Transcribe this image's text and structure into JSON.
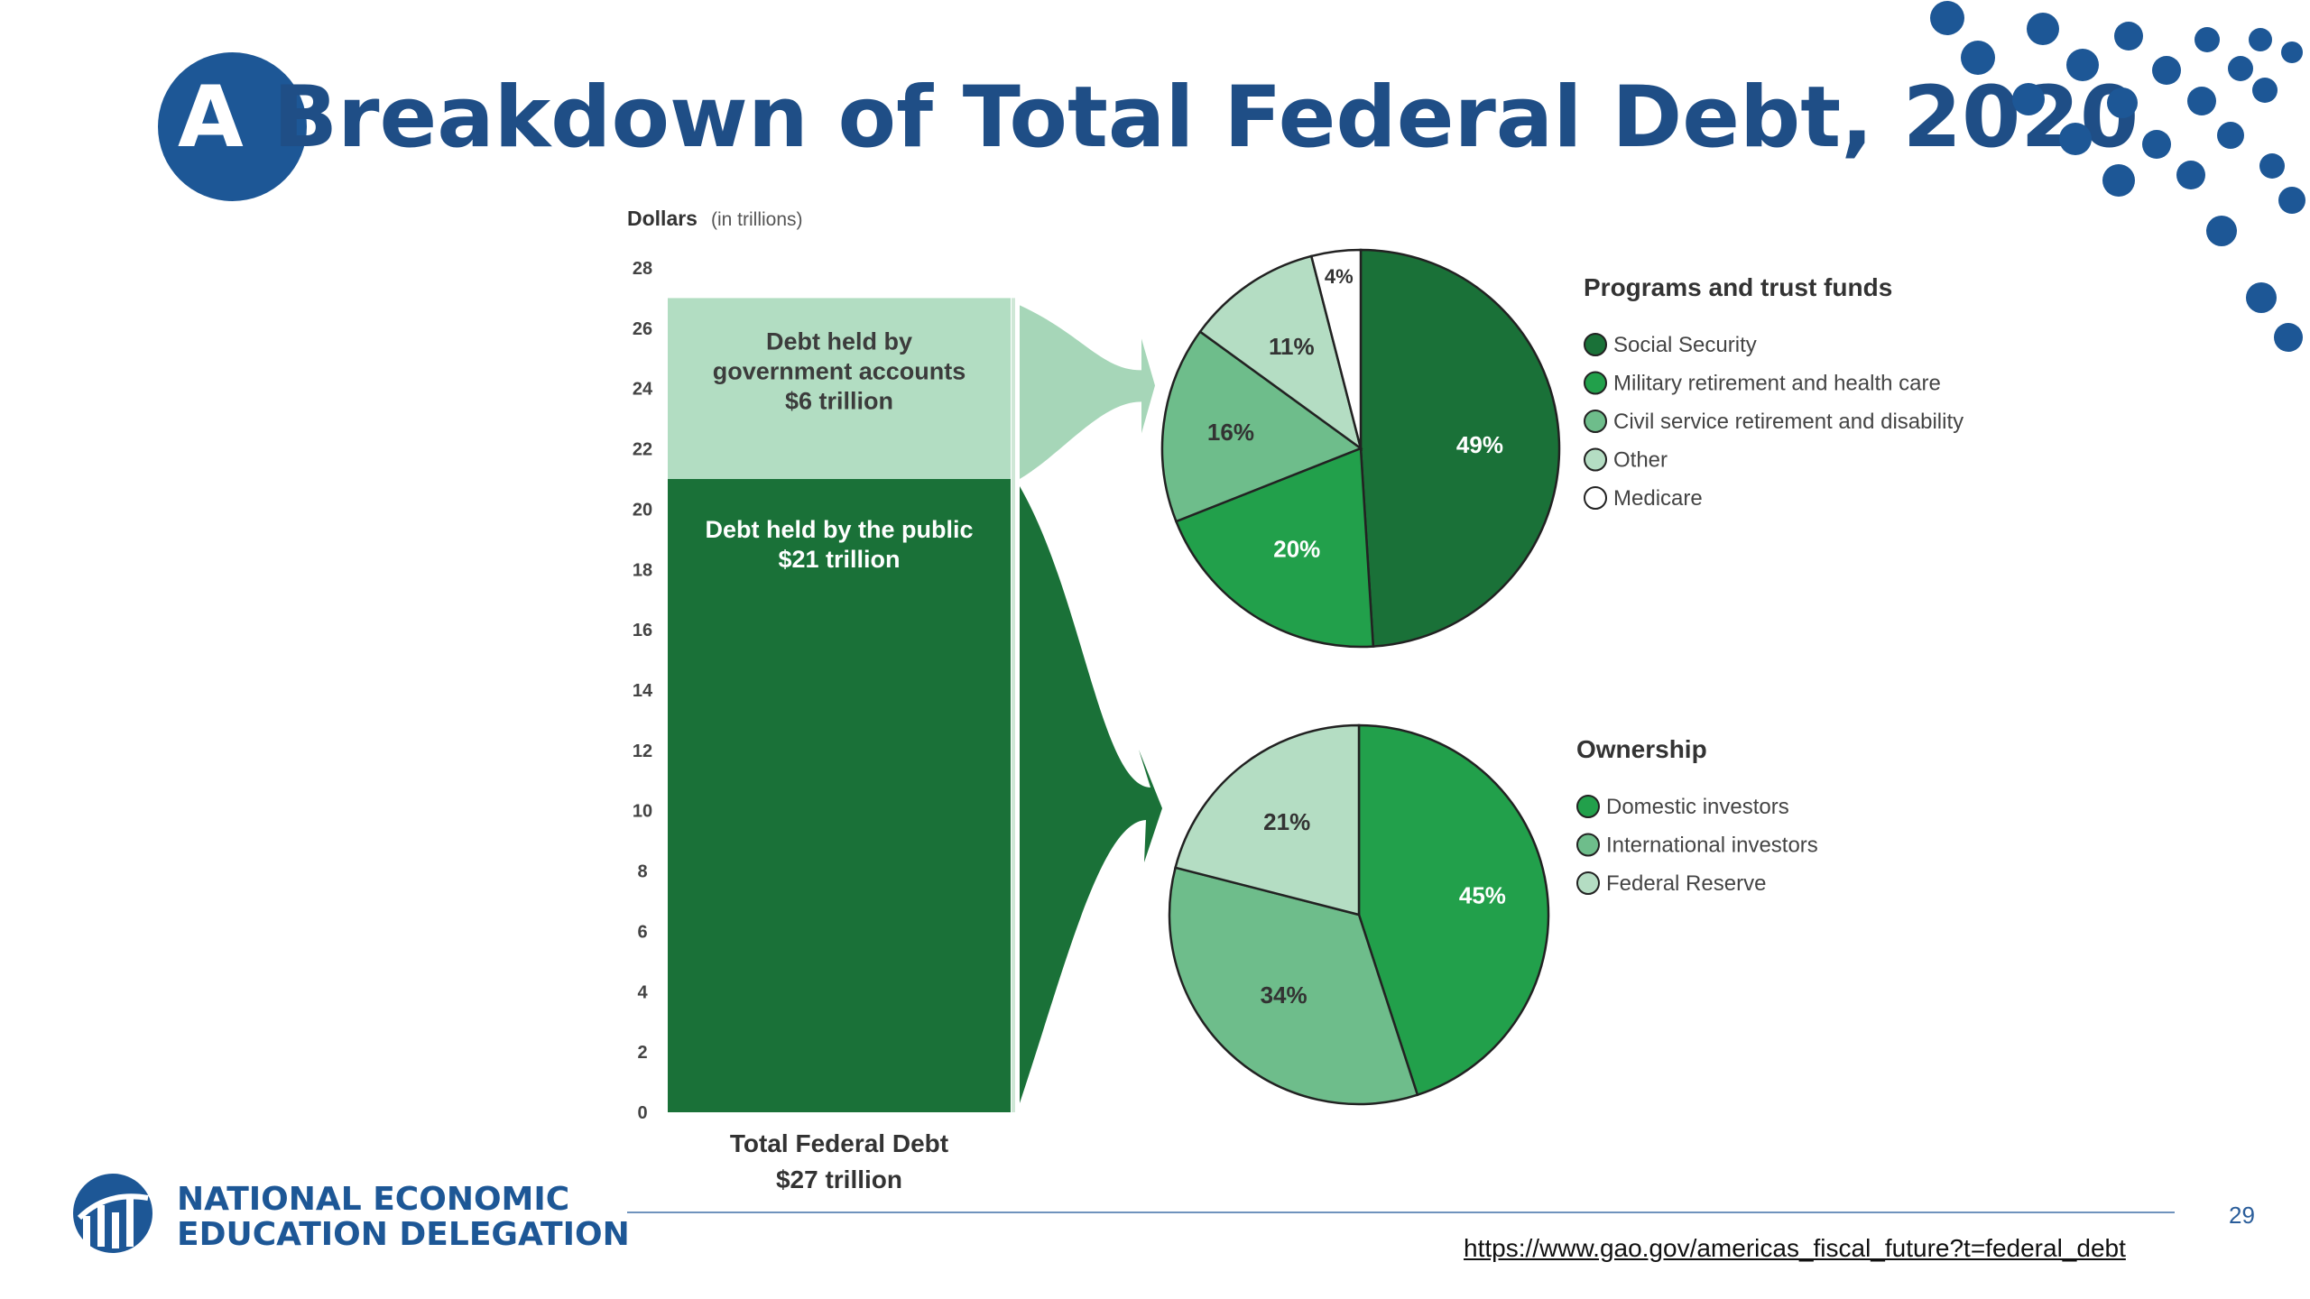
{
  "title": {
    "letter": "A",
    "rest": " Breakdown of Total Federal Debt, 2020"
  },
  "chart_data": [
    {
      "type": "bar",
      "axis_label": "Dollars",
      "axis_unit": "(in trillions)",
      "yticks": [
        0,
        2,
        4,
        6,
        8,
        10,
        12,
        14,
        16,
        18,
        20,
        22,
        24,
        26,
        28
      ],
      "ylim": [
        0,
        28
      ],
      "categories": [
        "Total Federal Debt"
      ],
      "segments": [
        {
          "lines": [
            "Debt held by the public",
            "$21 trillion"
          ],
          "value": 21,
          "color": "#1a7138"
        },
        {
          "lines": [
            "Debt held by",
            "government accounts",
            "$6 trillion"
          ],
          "value": 6,
          "color": "#b2ddc2"
        }
      ],
      "category_label_lines": [
        "Total Federal Debt",
        "$27 trillion"
      ]
    },
    {
      "type": "pie",
      "legend_title": "Programs and trust funds",
      "slices": [
        {
          "label": "Social Security",
          "value": 49,
          "text": "49%",
          "color": "#1a7138"
        },
        {
          "label": "Military retirement and health care",
          "value": 20,
          "text": "20%",
          "color": "#22a04b"
        },
        {
          "label": "Civil service retirement and disability",
          "value": 16,
          "text": "16%",
          "color": "#6ebd8b"
        },
        {
          "label": "Other",
          "value": 11,
          "text": "11%",
          "color": "#b4ddc3"
        },
        {
          "label": "Medicare",
          "value": 4,
          "text": "4%",
          "color": "#ffffff"
        }
      ]
    },
    {
      "type": "pie",
      "legend_title": "Ownership",
      "slices": [
        {
          "label": "Domestic investors",
          "value": 45,
          "text": "45%",
          "color": "#22a04b"
        },
        {
          "label": "International investors",
          "value": 34,
          "text": "34%",
          "color": "#6ebd8b"
        },
        {
          "label": "Federal Reserve",
          "value": 21,
          "text": "21%",
          "color": "#b4ddc3"
        }
      ]
    }
  ],
  "logo": {
    "line1": "NATIONAL ECONOMIC",
    "line2": "EDUCATION DELEGATION"
  },
  "page_number": "29",
  "source_url": "https://www.gao.gov/americas_fiscal_future?t=federal_debt",
  "colors": {
    "brand_blue": "#1d5796",
    "title_blue": "#1f4e86"
  }
}
